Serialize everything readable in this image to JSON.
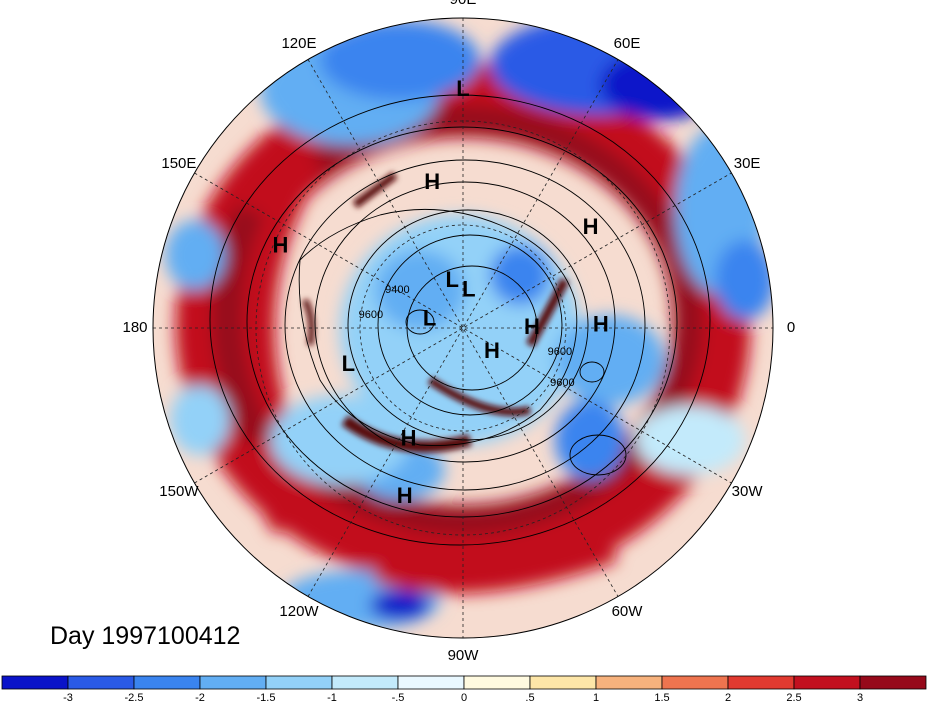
{
  "day_label": "Day 1997100412",
  "longitude_labels": [
    {
      "text": "90E",
      "lon": 90
    },
    {
      "text": "60E",
      "lon": 60
    },
    {
      "text": "30E",
      "lon": 30
    },
    {
      "text": "0",
      "lon": 0
    },
    {
      "text": "30W",
      "lon": -30
    },
    {
      "text": "60W",
      "lon": -60
    },
    {
      "text": "90W",
      "lon": -90
    },
    {
      "text": "120W",
      "lon": -120
    },
    {
      "text": "150W",
      "lon": -150
    },
    {
      "text": "180",
      "lon": 180
    },
    {
      "text": "150E",
      "lon": 150
    },
    {
      "text": "120E",
      "lon": 120
    }
  ],
  "pressure_markers": [
    {
      "type": "L",
      "lon": 90,
      "lat": 21
    },
    {
      "type": "H",
      "lon": 102,
      "lat": 47
    },
    {
      "type": "H",
      "lon": 38,
      "lat": 43
    },
    {
      "type": "H",
      "lon": 156,
      "lat": 32
    },
    {
      "type": "L",
      "lon": 103,
      "lat": 76
    },
    {
      "type": "L",
      "lon": 81,
      "lat": 79
    },
    {
      "type": "L",
      "lon": 166,
      "lat": 80
    },
    {
      "type": "H",
      "lon": -40,
      "lat": 79
    },
    {
      "type": "H",
      "lon": 0,
      "lat": 70
    },
    {
      "type": "H",
      "lon": 1,
      "lat": 50
    },
    {
      "type": "L",
      "lon": -162,
      "lat": 55
    },
    {
      "type": "H",
      "lon": -116,
      "lat": 54
    },
    {
      "type": "H",
      "lon": -109,
      "lat": 38
    }
  ],
  "contour_labels": [
    {
      "text": "9400",
      "lon": 150,
      "lat": 68
    },
    {
      "text": "9600",
      "lon": 172,
      "lat": 63
    },
    {
      "text": "9600",
      "lon": -14,
      "lat": 61
    },
    {
      "text": "9600",
      "lon": -29,
      "lat": 57
    }
  ],
  "colorbar": {
    "ticks": [
      "-3",
      "-2.5",
      "-2",
      "-1.5",
      "-1",
      "-.5",
      "0",
      ".5",
      "1",
      "1.5",
      "2",
      "2.5",
      "3"
    ],
    "colors": [
      "#0a13c9",
      "#2a5ae6",
      "#3a84ef",
      "#62aef3",
      "#93d1f8",
      "#c3eafb",
      "#e9f8ff",
      "#fffae0",
      "#fde6a8",
      "#f7b27d",
      "#ee744f",
      "#e13a30",
      "#c2101f",
      "#96091a"
    ]
  },
  "map_colors": {
    "strong_positive": "#96091a",
    "positive": "#c2101f",
    "negative": "#2a5ae6",
    "strong_negative": "#0a13c9",
    "neutral": "#e9f8ff"
  }
}
